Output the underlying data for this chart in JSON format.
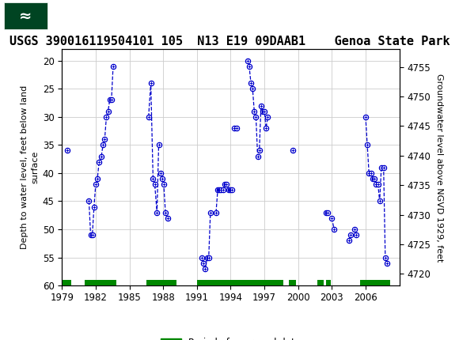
{
  "title": "USGS 390016119504101 105  N13 E19 09DAAB1    Genoa State Park",
  "ylabel_left": "Depth to water level, feet below land\nsurface",
  "ylabel_right": "Groundwater level above NGVD 1929, feet",
  "ylim_left": [
    60,
    18
  ],
  "ylim_right": [
    4718,
    4758
  ],
  "xlim": [
    1979,
    2009
  ],
  "yticks_left": [
    20,
    25,
    30,
    35,
    40,
    45,
    50,
    55,
    60
  ],
  "yticks_right": [
    4720,
    4725,
    4730,
    4735,
    4740,
    4745,
    4750,
    4755
  ],
  "xticks": [
    1979,
    1982,
    1985,
    1988,
    1991,
    1994,
    1997,
    2000,
    2003,
    2006
  ],
  "segments": [
    {
      "x": [
        1979.5
      ],
      "y": [
        36
      ]
    },
    {
      "x": [
        1981.4,
        1981.55,
        1981.7,
        1981.85,
        1982.0,
        1982.15,
        1982.3,
        1982.5,
        1982.65,
        1982.8,
        1982.95,
        1983.1,
        1983.25,
        1983.4,
        1983.55
      ],
      "y": [
        45,
        51,
        51,
        46,
        42,
        41,
        38,
        37,
        35,
        34,
        30,
        29,
        27,
        27,
        21
      ]
    },
    {
      "x": [
        1986.7,
        1986.9,
        1987.1,
        1987.25,
        1987.45,
        1987.6
      ],
      "y": [
        30,
        24,
        41,
        42,
        47,
        35
      ]
    },
    {
      "x": [
        1987.75,
        1987.9,
        1988.05,
        1988.2,
        1988.4
      ],
      "y": [
        40,
        41,
        42,
        47,
        48
      ]
    },
    {
      "x": [
        1991.45,
        1991.6
      ],
      "y": [
        55,
        56
      ]
    },
    {
      "x": [
        1991.75,
        1991.9,
        1992.05,
        1992.2
      ],
      "y": [
        57,
        55,
        55,
        47
      ]
    },
    {
      "x": [
        1992.7,
        1992.85,
        1993.0,
        1993.15,
        1993.3
      ],
      "y": [
        47,
        43,
        43,
        43,
        43
      ]
    },
    {
      "x": [
        1993.5,
        1993.65,
        1993.8,
        1993.95,
        1994.1
      ],
      "y": [
        42,
        42,
        43,
        43,
        43
      ]
    },
    {
      "x": [
        1994.3,
        1994.5
      ],
      "y": [
        32,
        32
      ]
    },
    {
      "x": [
        1995.5,
        1995.65,
        1995.8,
        1995.95,
        1996.1,
        1996.25,
        1996.4,
        1996.55,
        1996.7,
        1996.85,
        1997.0,
        1997.15,
        1997.3
      ],
      "y": [
        20,
        21,
        24,
        25,
        29,
        30,
        37,
        36,
        28,
        29,
        29,
        32,
        30
      ]
    },
    {
      "x": [
        1999.5
      ],
      "y": [
        36
      ]
    },
    {
      "x": [
        2002.5,
        2002.65
      ],
      "y": [
        47,
        47
      ]
    },
    {
      "x": [
        2003.0,
        2003.2
      ],
      "y": [
        48,
        50
      ]
    },
    {
      "x": [
        2004.5,
        2004.65
      ],
      "y": [
        52,
        51
      ]
    },
    {
      "x": [
        2005.0,
        2005.15
      ],
      "y": [
        50,
        51
      ]
    },
    {
      "x": [
        2006.0,
        2006.15,
        2006.3,
        2006.5,
        2006.65,
        2006.8,
        2006.95,
        2007.1,
        2007.25,
        2007.4,
        2007.6,
        2007.75,
        2007.9
      ],
      "y": [
        30,
        35,
        40,
        40,
        41,
        41,
        42,
        42,
        45,
        39,
        39,
        55,
        56
      ]
    }
  ],
  "approved_periods": [
    [
      1979.0,
      1979.8
    ],
    [
      1981.0,
      1983.8
    ],
    [
      1986.5,
      1989.2
    ],
    [
      1991.0,
      1998.7
    ],
    [
      1999.2,
      1999.8
    ],
    [
      2001.7,
      2002.3
    ],
    [
      2002.45,
      2002.9
    ],
    [
      2005.5,
      2008.2
    ]
  ],
  "approved_y": 59.5,
  "approved_bar_height": 0.9,
  "dot_color": "#0000cc",
  "line_color": "#0000cc",
  "approved_color": "#008800",
  "bg_color": "white",
  "header_bg": "#006633",
  "grid_color": "#cccccc",
  "title_fontsize": 11,
  "axis_fontsize": 8,
  "tick_fontsize": 8.5
}
